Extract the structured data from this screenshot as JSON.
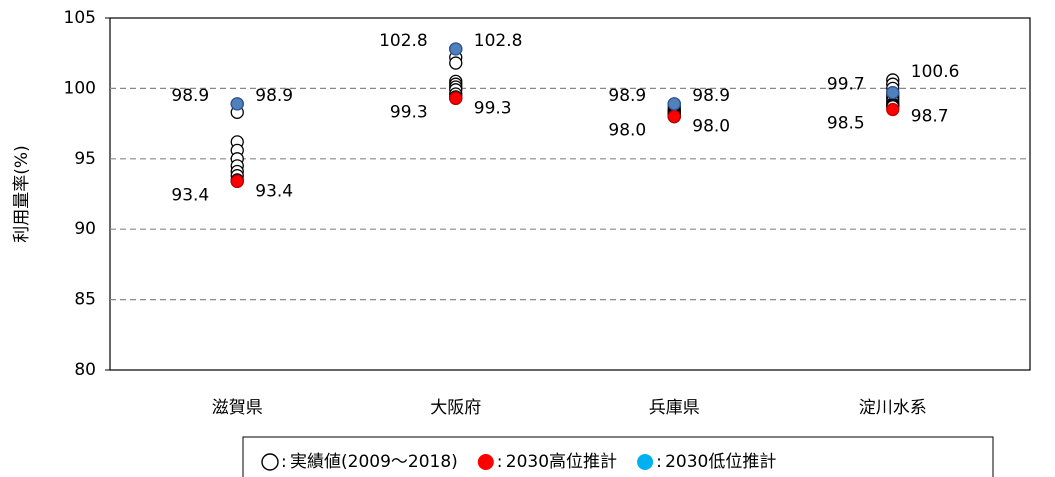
{
  "chart_data": {
    "type": "strip",
    "ylabel": "利用量率(%)",
    "categories": [
      "滋賀県",
      "大阪府",
      "兵庫県",
      "淀川水系"
    ],
    "ylim": [
      80,
      105
    ],
    "yticks": [
      80,
      85,
      90,
      95,
      100,
      105
    ],
    "grid": true,
    "legend_separator": ":",
    "series": [
      {
        "name": "実績値(2009～2018)",
        "color": "#ffffff",
        "edge": "#000000",
        "values": [
          [
            98.9,
            98.3,
            96.2,
            95.6,
            95.0,
            94.5,
            94.1,
            93.8,
            93.5,
            93.4
          ],
          [
            102.8,
            102.2,
            101.8,
            100.5,
            100.3,
            100.1,
            99.9,
            99.6,
            99.4,
            99.3
          ],
          [
            98.9,
            98.7,
            98.5,
            98.4,
            98.3,
            98.2,
            98.1,
            98.1,
            98.0,
            98.0
          ],
          [
            100.6,
            100.3,
            100.0,
            99.7,
            99.5,
            99.3,
            99.1,
            98.9,
            98.8,
            98.7
          ]
        ],
        "value_labels": [
          [
            "98.9",
            null,
            null,
            null,
            null,
            null,
            null,
            null,
            null,
            "93.4"
          ],
          [
            "102.8",
            null,
            null,
            null,
            null,
            null,
            null,
            null,
            null,
            "99.3"
          ],
          [
            "98.9",
            null,
            null,
            null,
            null,
            null,
            null,
            null,
            null,
            "98.0"
          ],
          [
            "100.6",
            null,
            null,
            null,
            null,
            null,
            null,
            null,
            null,
            "98.7"
          ]
        ],
        "label_color": "#000000"
      },
      {
        "name": "2030高位推計",
        "color": "#ff0000",
        "edge": "#c00000",
        "values": [
          93.4,
          99.3,
          98.0,
          98.5
        ],
        "value_labels": [
          "93.4",
          "99.3",
          "98.0",
          "98.5"
        ],
        "label_color": "#ff0000"
      },
      {
        "name": "2030低位推計",
        "color": "#4f81bd",
        "edge": "#2f5597",
        "values": [
          98.9,
          102.8,
          98.9,
          99.7
        ],
        "value_labels": [
          "98.9",
          "102.8",
          "98.9",
          "99.7"
        ],
        "label_color": "#2e75b6",
        "legend_color": "#00b0f0"
      }
    ]
  }
}
